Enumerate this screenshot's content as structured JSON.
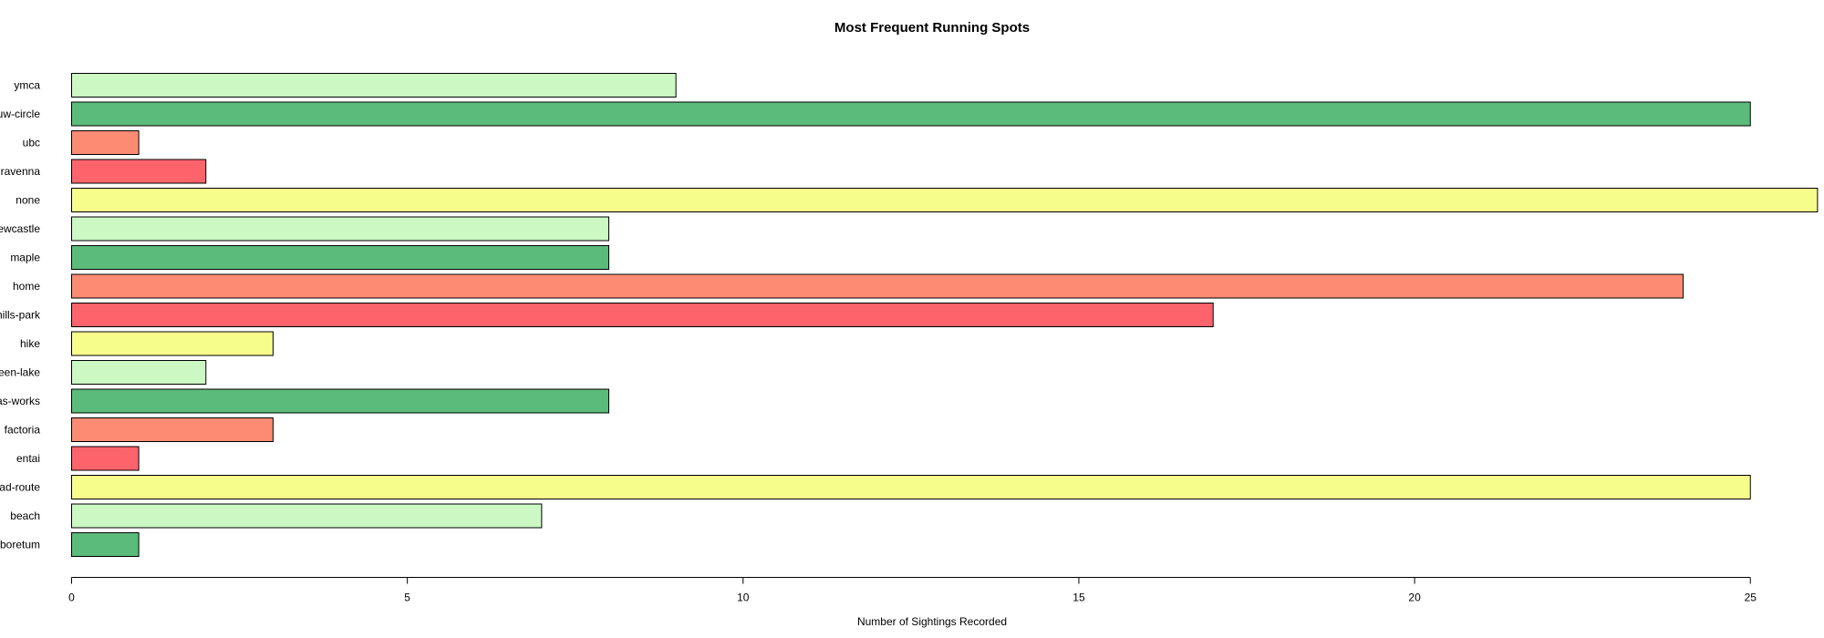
{
  "chart_data": {
    "type": "bar",
    "orientation": "horizontal",
    "title": "Most Frequent Running Spots",
    "xlabel": "Number of Sightings Recorded",
    "ylabel": "",
    "xlim": [
      0,
      26
    ],
    "xticks": [
      0,
      5,
      10,
      15,
      20,
      25
    ],
    "grid": false,
    "categories": [
      "ymca",
      "uw-circle",
      "ubc",
      "ravenna",
      "none",
      "ewcastle",
      "maple",
      "home",
      "hills-park",
      "hike",
      "een-lake",
      "as-works",
      "factoria",
      "entai",
      "ad-route",
      "beach",
      "boretum"
    ],
    "values": [
      9,
      25,
      1,
      2,
      26,
      8,
      8,
      24,
      17,
      3,
      2,
      8,
      3,
      1,
      25,
      7,
      1
    ],
    "colors": [
      "#ccf8c4",
      "#5bbb7a",
      "#fc8b74",
      "#fd636b",
      "#f7fd8b",
      "#ccf8c4",
      "#5bbb7a",
      "#fc8b74",
      "#fd636b",
      "#f7fd8b",
      "#ccf8c4",
      "#5bbb7a",
      "#fc8b74",
      "#fd636b",
      "#f7fd8b",
      "#ccf8c4",
      "#5bbb7a"
    ]
  }
}
